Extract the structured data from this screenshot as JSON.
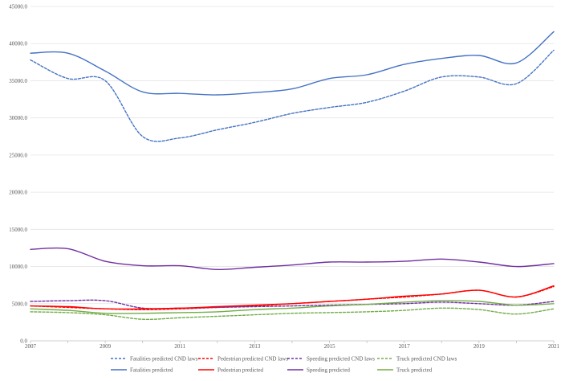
{
  "chart_data": {
    "type": "line",
    "title": "",
    "xlabel": "",
    "ylabel": "",
    "x": [
      2007,
      2008,
      2009,
      2010,
      2011,
      2012,
      2013,
      2014,
      2015,
      2016,
      2017,
      2018,
      2019,
      2020,
      2021
    ],
    "x_tick_labels": [
      "2007",
      "2009",
      "2011",
      "2013",
      "2015",
      "2017",
      "2019",
      "2021"
    ],
    "x_tick_values": [
      2007,
      2009,
      2011,
      2013,
      2015,
      2017,
      2019,
      2021
    ],
    "y_tick_labels": [
      "0.0",
      "5000.0",
      "10000.0",
      "15000.0",
      "20000.0",
      "25000.0",
      "30000.0",
      "35000.0",
      "40000.0",
      "45000.0"
    ],
    "y_tick_values": [
      0,
      5000,
      10000,
      15000,
      20000,
      25000,
      30000,
      35000,
      40000,
      45000
    ],
    "xlim": [
      2007,
      2021
    ],
    "ylim": [
      0,
      45000
    ],
    "grid": "horizontal",
    "legend_position": "bottom",
    "series": [
      {
        "name": "Fatalities predicted CND laws",
        "color": "#4472C4",
        "dashed": true,
        "values": [
          37800,
          35300,
          35000,
          27500,
          27300,
          28400,
          29400,
          30600,
          31400,
          32100,
          33600,
          35500,
          35500,
          34600,
          39100
        ]
      },
      {
        "name": "Pedestrian predicted CND laws",
        "color": "#FF0000",
        "dashed": true,
        "values": [
          4700,
          4500,
          4300,
          4200,
          4300,
          4500,
          4700,
          5000,
          5300,
          5600,
          5900,
          6300,
          6800,
          5900,
          7300
        ]
      },
      {
        "name": "Speeding predicted CND laws",
        "color": "#7030A0",
        "dashed": true,
        "values": [
          5300,
          5400,
          5400,
          4400,
          4400,
          4500,
          4600,
          4700,
          4800,
          4900,
          5000,
          5200,
          5000,
          4800,
          5300
        ]
      },
      {
        "name": "Truck predicted CND laws",
        "color": "#70AD47",
        "dashed": true,
        "values": [
          3900,
          3800,
          3500,
          2900,
          3100,
          3300,
          3500,
          3700,
          3800,
          3900,
          4100,
          4400,
          4200,
          3600,
          4300
        ]
      },
      {
        "name": "Fatalities predicted",
        "color": "#4472C4",
        "dashed": false,
        "values": [
          38700,
          38700,
          36300,
          33500,
          33300,
          33100,
          33400,
          33900,
          35300,
          35800,
          37200,
          38000,
          38400,
          37400,
          41600
        ]
      },
      {
        "name": "Pedestrian predicted",
        "color": "#FF0000",
        "dashed": false,
        "values": [
          4700,
          4600,
          4300,
          4300,
          4400,
          4600,
          4800,
          5000,
          5300,
          5600,
          6000,
          6300,
          6800,
          5900,
          7400
        ]
      },
      {
        "name": "Speeding predicted",
        "color": "#7030A0",
        "dashed": false,
        "values": [
          12300,
          12400,
          10700,
          10100,
          10100,
          9600,
          9900,
          10200,
          10600,
          10600,
          10700,
          11000,
          10600,
          10000,
          10400
        ]
      },
      {
        "name": "Truck predicted",
        "color": "#70AD47",
        "dashed": false,
        "values": [
          4300,
          4100,
          3700,
          3700,
          3800,
          3900,
          4200,
          4400,
          4700,
          4900,
          5200,
          5400,
          5300,
          4800,
          5000
        ]
      }
    ]
  }
}
